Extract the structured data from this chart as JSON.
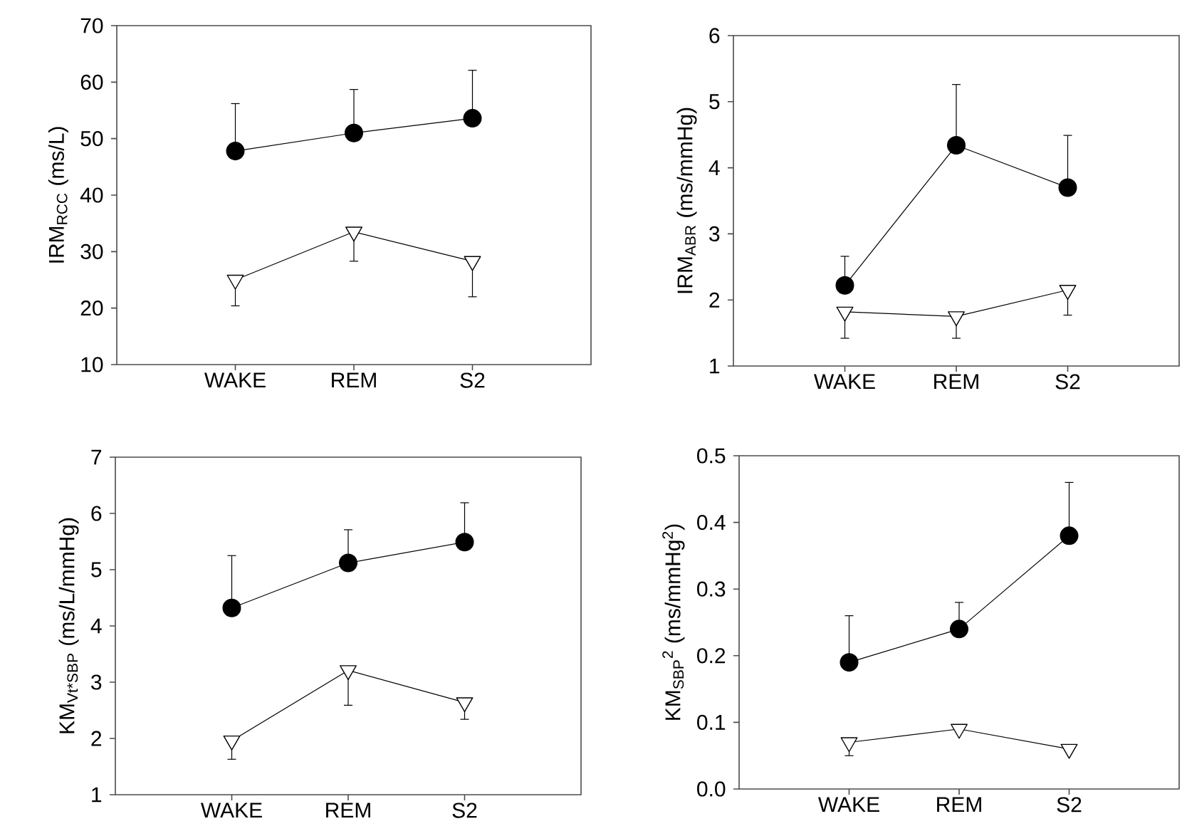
{
  "chart_data": [
    {
      "type": "line",
      "categories": [
        "WAKE",
        "REM",
        "S2"
      ],
      "ylabel": "IRM$_{RCC}$ (ms/L)",
      "ylim": [
        10,
        70
      ],
      "yticks": [
        10,
        20,
        30,
        40,
        50,
        60,
        70
      ],
      "series": [
        {
          "color": "#000000",
          "marker": "circle",
          "values": [
            47.8,
            51.0,
            53.6
          ],
          "errors": [
            [
              47.8,
              56.2
            ],
            [
              51.0,
              58.7
            ],
            [
              53.6,
              62.1
            ]
          ]
        },
        {
          "color": "#ffffff",
          "marker": "triangle",
          "values": [
            25.0,
            33.5,
            28.3
          ],
          "errors": [
            [
              20.4,
              25.0
            ],
            [
              28.3,
              33.5
            ],
            [
              22.0,
              28.3
            ]
          ]
        }
      ]
    },
    {
      "type": "line",
      "categories": [
        "WAKE",
        "REM",
        "S2"
      ],
      "ylabel": "IRM$_{ABR}$ (ms/mmHg)",
      "ylim": [
        1,
        6
      ],
      "yticks": [
        1,
        2,
        3,
        4,
        5,
        6
      ],
      "series": [
        {
          "color": "#000000",
          "marker": "circle",
          "values": [
            2.22,
            4.34,
            3.7
          ],
          "errors": [
            [
              2.22,
              2.66
            ],
            [
              4.34,
              5.26
            ],
            [
              3.7,
              4.49
            ]
          ]
        },
        {
          "color": "#ffffff",
          "marker": "triangle",
          "values": [
            1.82,
            1.75,
            2.15
          ],
          "errors": [
            [
              1.42,
              1.82
            ],
            [
              1.42,
              1.75
            ],
            [
              1.77,
              2.15
            ]
          ]
        }
      ]
    },
    {
      "type": "line",
      "categories": [
        "WAKE",
        "REM",
        "S2"
      ],
      "ylabel": "KM$_{Vt*SBP}$ (ms/L/mmHg)",
      "ylim": [
        1,
        7
      ],
      "yticks": [
        1,
        2,
        3,
        4,
        5,
        6,
        7
      ],
      "series": [
        {
          "color": "#000000",
          "marker": "circle",
          "values": [
            4.32,
            5.12,
            5.49
          ],
          "errors": [
            [
              4.32,
              5.25
            ],
            [
              5.12,
              5.71
            ],
            [
              5.49,
              6.19
            ]
          ]
        },
        {
          "color": "#ffffff",
          "marker": "triangle",
          "values": [
            1.96,
            3.21,
            2.64
          ],
          "errors": [
            [
              1.63,
              1.96
            ],
            [
              2.59,
              3.21
            ],
            [
              2.34,
              2.64
            ]
          ]
        }
      ]
    },
    {
      "type": "line",
      "categories": [
        "WAKE",
        "REM",
        "S2"
      ],
      "ylabel": "KM$_{SBP}$$^{2}$ (ms/mmHg$^{2}$)",
      "ylim": [
        0,
        0.5
      ],
      "yticks": [
        {
          "value": 0,
          "label": "0.0"
        },
        0.1,
        0.2,
        0.3,
        0.4,
        0.5
      ],
      "series": [
        {
          "color": "#000000",
          "marker": "circle",
          "values": [
            0.19,
            0.24,
            0.38
          ],
          "errors": [
            [
              0.19,
              0.26
            ],
            [
              0.24,
              0.28
            ],
            [
              0.38,
              0.46
            ]
          ]
        },
        {
          "color": "#ffffff",
          "marker": "triangle",
          "values": [
            0.07,
            0.09,
            0.06
          ],
          "errors": [
            [
              0.05,
              0.07
            ],
            null,
            null
          ]
        }
      ]
    }
  ]
}
